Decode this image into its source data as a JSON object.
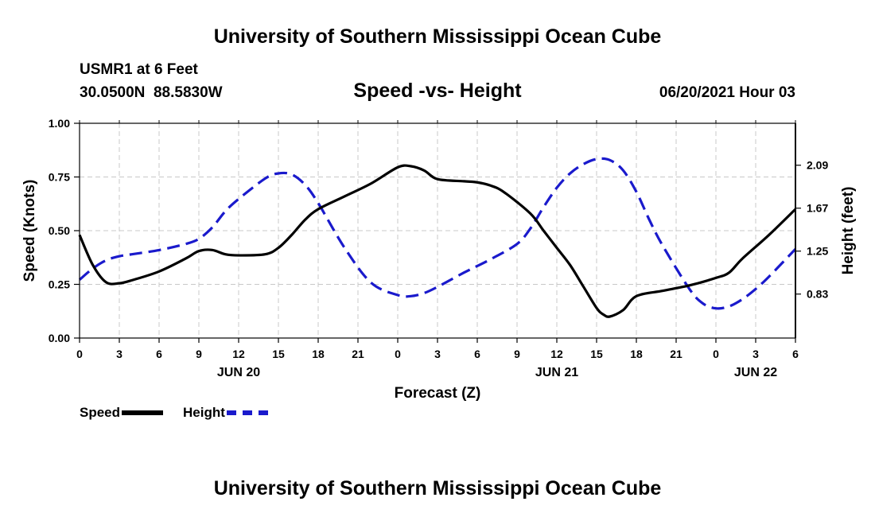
{
  "header": {
    "title": "University of Southern Mississippi Ocean Cube",
    "station": "USMR1 at 6 Feet",
    "location": "30.0500N  88.5830W",
    "chart_title": "Speed -vs- Height",
    "timestamp": "06/20/2021 Hour 03"
  },
  "footer": {
    "title": "University of Southern Mississippi Ocean Cube"
  },
  "legend": {
    "speed_label": "Speed",
    "height_label": "Height"
  },
  "colors": {
    "speed": "#000000",
    "height": "#1a1acc",
    "grid": "#c8c8c8"
  },
  "chart_data": {
    "type": "line",
    "title": "Speed -vs- Height",
    "xlabel": "Forecast (Z)",
    "ylabel": "Speed (Knots)",
    "y2label": "Height (feet)",
    "xlim": [
      0,
      54
    ],
    "ylim": [
      0,
      1.0
    ],
    "y2lim": [
      0.4,
      2.5
    ],
    "grid": true,
    "x_ticks": [
      0,
      3,
      6,
      9,
      12,
      15,
      18,
      21,
      24,
      27,
      30,
      33,
      36,
      39,
      42,
      45,
      48,
      51,
      54
    ],
    "x_tick_labels": [
      "0",
      "3",
      "6",
      "9",
      "12",
      "15",
      "18",
      "21",
      "0",
      "3",
      "6",
      "9",
      "12",
      "15",
      "18",
      "21",
      "0",
      "3",
      "6"
    ],
    "date_labels": [
      {
        "x": 12,
        "label": "JUN 20"
      },
      {
        "x": 36,
        "label": "JUN 21"
      },
      {
        "x": 51,
        "label": "JUN 22"
      }
    ],
    "y_ticks": [
      0,
      0.25,
      0.5,
      0.75,
      1.0
    ],
    "y_tick_labels": [
      "0.00",
      "0.25",
      "0.50",
      "0.75",
      "1.00"
    ],
    "y2_ticks": [
      0.83,
      1.25,
      1.67,
      2.09
    ],
    "y2_tick_labels": [
      "0.83",
      "1.25",
      "1.67",
      "2.09"
    ],
    "series": [
      {
        "name": "Speed",
        "axis": "left",
        "style": "solid",
        "x": [
          0,
          1,
          2,
          3,
          4,
          6,
          8,
          9,
          10,
          11,
          12,
          14,
          15,
          16,
          17,
          18,
          20,
          22,
          24,
          25,
          26,
          27,
          29,
          30,
          31,
          32,
          34,
          35,
          36,
          37,
          38,
          39,
          39.5,
          40,
          41,
          42,
          44,
          46,
          48,
          49,
          50,
          52,
          54
        ],
        "values": [
          0.48,
          0.34,
          0.26,
          0.255,
          0.27,
          0.31,
          0.37,
          0.405,
          0.41,
          0.39,
          0.385,
          0.39,
          0.42,
          0.48,
          0.55,
          0.6,
          0.66,
          0.72,
          0.795,
          0.8,
          0.78,
          0.74,
          0.73,
          0.725,
          0.71,
          0.68,
          0.58,
          0.5,
          0.42,
          0.34,
          0.24,
          0.14,
          0.11,
          0.1,
          0.13,
          0.195,
          0.22,
          0.245,
          0.28,
          0.305,
          0.37,
          0.48,
          0.6
        ]
      },
      {
        "name": "Height",
        "axis": "right",
        "style": "dashed",
        "x": [
          0,
          1,
          2,
          3,
          4,
          6,
          8,
          9,
          10,
          11,
          12,
          14,
          15,
          16,
          17,
          18,
          20,
          22,
          24,
          25,
          26,
          27,
          29,
          31,
          33,
          34,
          35,
          36,
          37,
          38,
          39,
          40,
          41,
          42,
          43,
          44,
          46,
          47,
          48,
          49,
          50,
          51,
          52,
          54
        ],
        "values": [
          0.97,
          1.08,
          1.16,
          1.2,
          1.22,
          1.26,
          1.32,
          1.37,
          1.48,
          1.64,
          1.76,
          1.96,
          2.01,
          2.0,
          1.9,
          1.72,
          1.28,
          0.94,
          0.82,
          0.81,
          0.84,
          0.9,
          1.04,
          1.17,
          1.32,
          1.47,
          1.68,
          1.87,
          2.01,
          2.1,
          2.15,
          2.14,
          2.04,
          1.83,
          1.55,
          1.3,
          0.88,
          0.74,
          0.69,
          0.71,
          0.78,
          0.88,
          1.0,
          1.27
        ]
      }
    ]
  }
}
